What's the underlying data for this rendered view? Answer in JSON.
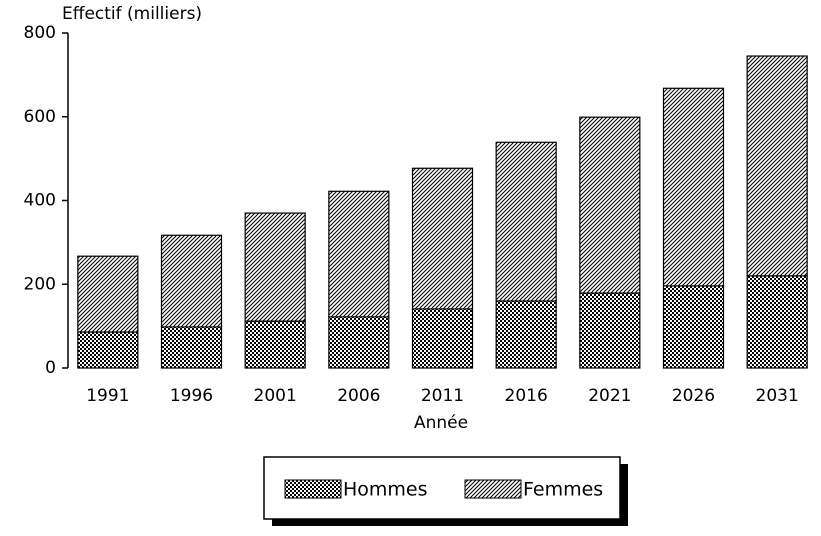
{
  "chart_data": {
    "type": "stacked_bar",
    "y_label": "Effectif (milliers)",
    "x_label": "Année",
    "categories": [
      "1991",
      "1996",
      "2001",
      "2006",
      "2011",
      "2016",
      "2021",
      "2026",
      "2031"
    ],
    "series": [
      {
        "name": "Hommes",
        "color": "#000000",
        "values": [
          86,
          98,
          112,
          122,
          141,
          160,
          179,
          196,
          220
        ]
      },
      {
        "name": "Femmes",
        "color": "#000000",
        "values": [
          181,
          219,
          258,
          300,
          336,
          379,
          420,
          472,
          525
        ]
      }
    ],
    "ylim": [
      0,
      800
    ],
    "yticks": [
      0,
      200,
      400,
      600,
      800
    ]
  }
}
